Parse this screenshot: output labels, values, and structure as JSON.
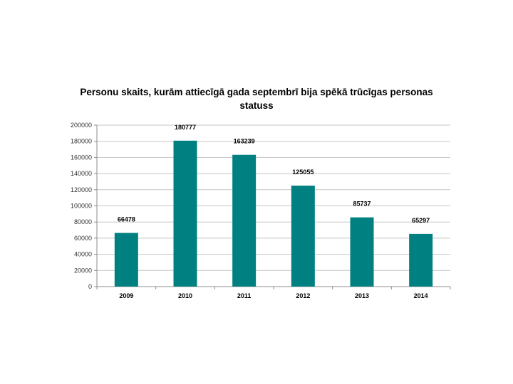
{
  "chart_data": {
    "type": "bar",
    "title_lines": [
      "Personu skaits, kurām attiecīgā gada septembrī bija spēkā trūcīgas personas",
      "statuss"
    ],
    "categories": [
      "2009",
      "2010",
      "2011",
      "2012",
      "2013",
      "2014"
    ],
    "values": [
      66478,
      180777,
      163239,
      125055,
      85737,
      65297
    ],
    "data_labels": [
      "66478",
      "180777",
      "163239",
      "125055",
      "85737",
      "65297"
    ],
    "yticks": [
      "0",
      "20000",
      "40000",
      "60000",
      "80000",
      "100000",
      "120000",
      "140000",
      "160000",
      "180000",
      "200000"
    ],
    "ylim": [
      0,
      200000
    ],
    "bar_color": "#008080",
    "grid": true,
    "legend": "none"
  }
}
